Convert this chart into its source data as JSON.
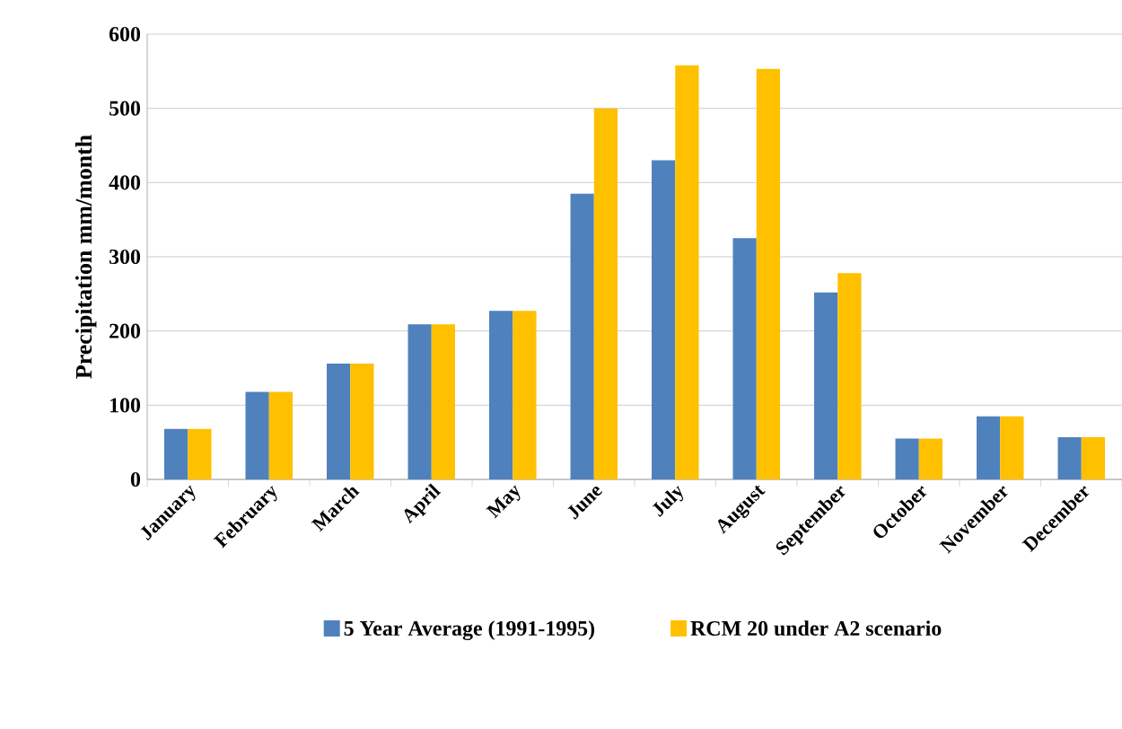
{
  "chart_data": {
    "type": "bar",
    "ylabel": "Precipitation mm/month",
    "categories": [
      "January",
      "February",
      "March",
      "April",
      "May",
      "June",
      "July",
      "August",
      "September",
      "October",
      "November",
      "December"
    ],
    "series": [
      {
        "name": "5 Year Average (1991-1995)",
        "color": "#4f81bd",
        "values": [
          68,
          118,
          156,
          209,
          227,
          385,
          430,
          325,
          252,
          55,
          85,
          57
        ]
      },
      {
        "name": "RCM 20 under A2 scenario",
        "color": "#ffc000",
        "values": [
          68,
          118,
          156,
          209,
          227,
          500,
          558,
          553,
          278,
          55,
          85,
          57
        ]
      }
    ],
    "ylim": [
      0,
      600
    ],
    "yticks": [
      0,
      100,
      200,
      300,
      400,
      500,
      600
    ],
    "grid": "y",
    "legend": "bottom"
  }
}
